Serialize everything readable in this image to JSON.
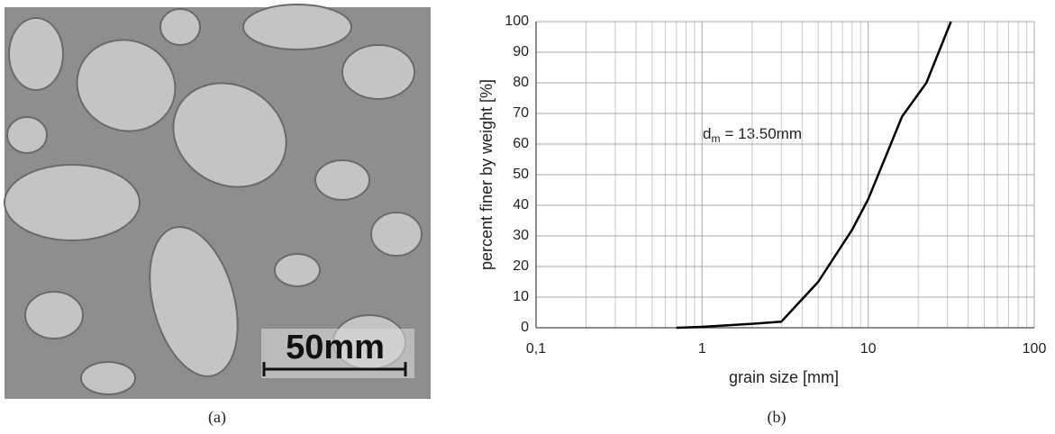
{
  "photo": {
    "scale_label": "50mm",
    "caption": "(a)"
  },
  "chart_data": {
    "type": "line",
    "caption": "(b)",
    "x_label": "grain size [mm]",
    "y_label": "percent finer by weight [%]",
    "annotation": {
      "base": "d",
      "sub": "m",
      "rest": "= 13.50mm"
    },
    "x": [
      0.7,
      1,
      2,
      3,
      5,
      8,
      10,
      16,
      22.4,
      31.5
    ],
    "series": [
      {
        "color": "#000000",
        "values": [
          0,
          0.3,
          1.3,
          2,
          15,
          32,
          42,
          69,
          80,
          100
        ]
      }
    ],
    "xlog": true,
    "xlim": [
      0.1,
      100
    ],
    "xticks": [
      {
        "value": 0.1,
        "label": "0,1"
      },
      1,
      10,
      100
    ],
    "ylim": [
      0,
      100
    ],
    "yticks": [
      0,
      10,
      20,
      30,
      40,
      50,
      60,
      70,
      80,
      90,
      100
    ],
    "grid": true,
    "minor_grid": true
  }
}
